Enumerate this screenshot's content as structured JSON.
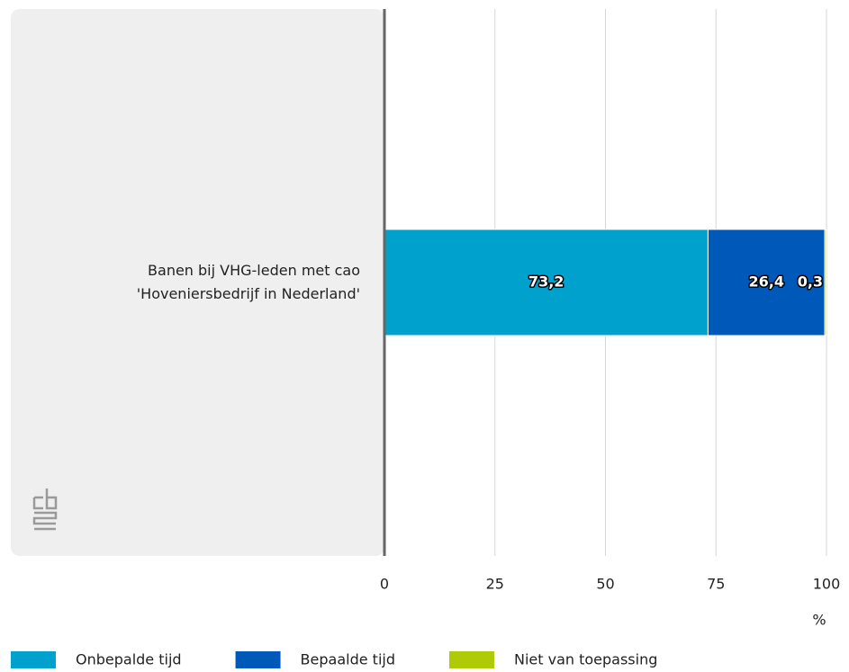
{
  "chart_data": {
    "type": "stacked_barh",
    "categories": [
      "Banen bij VHG-leden met cao 'Hoveniersbedrijf in Nederland'"
    ],
    "series": [
      {
        "name": "Onbepalde tijd",
        "color": "#00a1cd",
        "values": [
          73.2
        ],
        "value_labels": [
          "73,2"
        ]
      },
      {
        "name": "Bepaalde tijd",
        "color": "#0058b8",
        "values": [
          26.4
        ],
        "value_labels": [
          "26,4"
        ]
      },
      {
        "name": "Niet van toepassing",
        "color": "#afcb05",
        "values": [
          0.3
        ],
        "value_labels": [
          "0,3"
        ]
      }
    ],
    "xlim": [
      0,
      100
    ],
    "xticks": [
      0,
      25,
      50,
      75,
      100
    ],
    "xlabel": "%",
    "grid": true,
    "legend": "bottom"
  }
}
